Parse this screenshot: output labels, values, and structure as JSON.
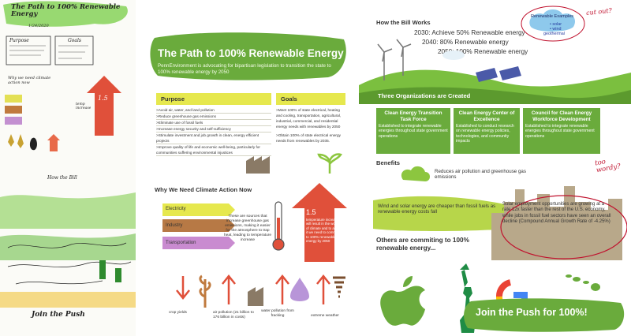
{
  "sketch": {
    "title": "The Path to 100% Renewable Energy",
    "date": "1/24/2020",
    "purpose": "Purpose",
    "goals": "Goals",
    "why_note": "Why we need climate action now",
    "arrow_number": "1.5",
    "side_note": "temp increase",
    "how_bill": "How the Bill",
    "bottom_note": "Join the Push"
  },
  "mid": {
    "title": "The Path to 100% Renewable Energy",
    "subtitle": "PennEnvironment is advocating for bipartisan legislation to transition the state to 100% renewable energy by 2050",
    "purpose": {
      "header": "Purpose",
      "items": [
        ">Avoid air, water, and land pollution",
        ">Reduce greenhouse gas emissions",
        ">Eliminate use of fossil fuels",
        ">Increase energy security and self-sufficiency",
        ">Stimulate investment and job growth in clean, energy efficient projects",
        ">Improve quality of life and economic well-being, particularly for communities suffering environmental injustices"
      ]
    },
    "goals": {
      "header": "Goals",
      "items": [
        ">Meet 100% of state electrical, heating and cooling, transportation, agricultural, industrial, commercial, and residential energy needs with renewables by 2050",
        ">Obtain 100% of state electrical energy needs from renewables by 2035."
      ]
    },
    "why_title": "Why We Need Climate Action Now",
    "sources": [
      "Electricity",
      "Industry",
      "Transportation"
    ],
    "sources_text": "These are sources that increase greenhouse gas emissions, making it easier for the atmosphere to trap heat, leading to temperature increase",
    "temp": {
      "value": "1.5",
      "text": "temperature increase will result in the worst of climate and to avoid it we need to commit to 100% renewable energy by 2050"
    },
    "impacts": [
      "crop yields",
      "air pollution (21 billion to 176 billion in costs)",
      "water pollution from fracking",
      "extreme weather"
    ]
  },
  "right": {
    "how_title": "How the Bill Works",
    "milestones": [
      {
        "year": "2030",
        "text": ": Achieve 50% Renewable energy"
      },
      {
        "year": "2040",
        "text": ": 80% Renewable energy"
      },
      {
        "year": "2050",
        "text": ": 100% Renewable energy"
      }
    ],
    "examples": {
      "title": "Renewable Examples",
      "items": [
        "• solar",
        "• wind",
        "geothermal"
      ]
    },
    "note_cut": "cut out?",
    "orgs_title": "Three Organizations are Created",
    "orgs": [
      {
        "title": "Clean Energy Transition Task Force",
        "text": "Established to integrate renewable energies throughout state government operations"
      },
      {
        "title": "Clean Energy Center of Excellence",
        "text": "Established to conduct research on renewable energy policies, technologies, and community impacts"
      },
      {
        "title": "Council for Clean Energy Workforce Development",
        "text": "Established to integrate renewable energies throughout state government operations"
      }
    ],
    "benefits_title": "Benefits",
    "benefit_air": "Reduces air pollution and greenhouse gas emissions",
    "benefit_cost": "Wind and solar energy are cheaper than fossil fuels as renewable energy costs fall",
    "benefit_jobs": "Solar employment opportunities are growing at a rate 12x faster than the rest of the U.S. economy, while jobs in fossil fuel sectors have seen an overall decline (Compound Annual Growth Rate of -4.25%)",
    "note_wordy": "too wordy?",
    "others_title": "Others are commiting to 100% renewable energy...",
    "join": "Join the Push for 100%!"
  },
  "colors": {
    "green": "#6aab3c",
    "yellow": "#e6e84e",
    "red": "#e0503a",
    "purple": "#c98bd0",
    "brown": "#a08a6c",
    "blue_cloud": "#8ec9ec"
  }
}
